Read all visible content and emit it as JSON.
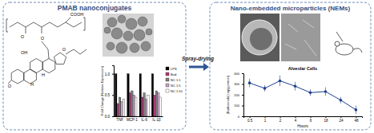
{
  "panels": [
    {
      "title": "PMAB nanoconjugates"
    },
    {
      "title": "Nano-embedded microparticles (NEMs)"
    }
  ],
  "arrow": {
    "label": "Spray-drying"
  },
  "structure": {
    "labels": [
      "COOH",
      "O",
      "O",
      "OH",
      "H",
      "H",
      "O",
      "O"
    ]
  },
  "chart_data": [
    {
      "type": "bar",
      "y_label": "Fold Change (Relative Expression)",
      "categories": [
        "TNF",
        "MCP-1",
        "IL-6",
        "IL-1β"
      ],
      "series": [
        {
          "name": "LPS",
          "color": "#000000",
          "values": [
            1.0,
            1.0,
            1.0,
            1.0
          ]
        },
        {
          "name": "Bud",
          "color": "#b03a7a",
          "values": [
            0.3,
            0.55,
            0.45,
            0.5
          ]
        },
        {
          "name": "NC 1:1",
          "color": "#7f7f7f",
          "values": [
            0.45,
            0.6,
            0.55,
            0.6
          ]
        },
        {
          "name": "NC 1:5",
          "color": "#c7a3c4",
          "values": [
            0.35,
            0.5,
            0.4,
            0.55
          ]
        },
        {
          "name": "NC 1:10",
          "color": "#ffffff",
          "values": [
            0.4,
            0.45,
            0.5,
            0.45
          ]
        }
      ],
      "ylim": [
        0,
        1.2
      ],
      "yticks": [
        {
          "value": 0,
          "label": "0.0"
        },
        {
          "value": 0.5,
          "label": "0.5"
        },
        {
          "value": 1,
          "label": "1.0"
        }
      ],
      "legend": "upper right"
    },
    {
      "type": "line",
      "title": "Alveolar Cells",
      "x_label": "Hours",
      "y_label": "[Budesonide] (ng/g protein)",
      "categories": [
        "0.5",
        "1",
        "2",
        "4",
        "6",
        "18",
        "24",
        "48"
      ],
      "values": [
        310,
        260,
        330,
        280,
        220,
        230,
        150,
        60
      ],
      "errors": [
        40,
        30,
        50,
        40,
        30,
        40,
        30,
        40
      ],
      "color": "#1f3f8f",
      "marker": "circle",
      "ylim": [
        0,
        400
      ],
      "yticks": [
        0,
        100,
        200,
        300,
        400
      ]
    }
  ]
}
